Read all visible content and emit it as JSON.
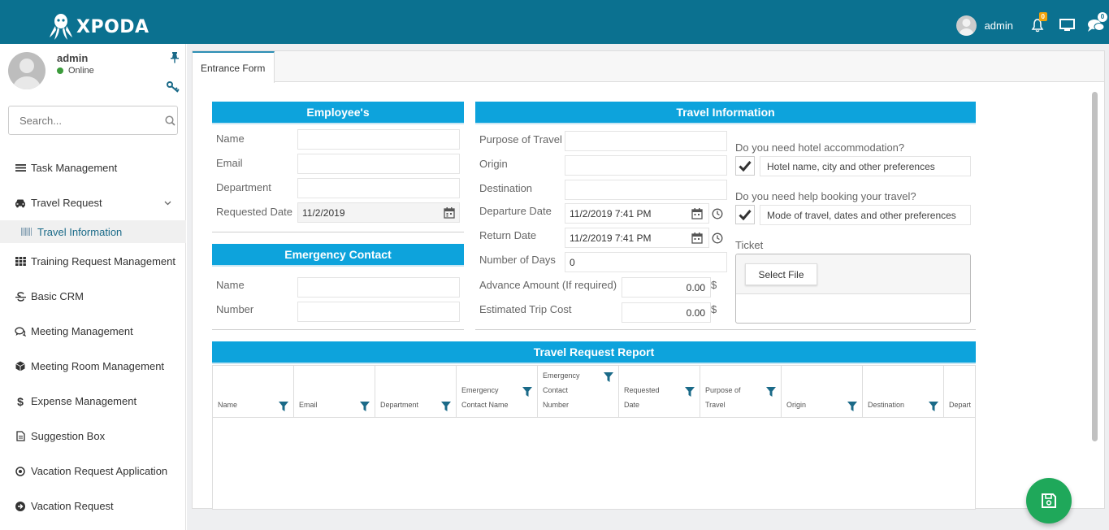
{
  "header": {
    "brand": "XPODA",
    "user": "admin",
    "notification_count": "0",
    "chat_count": "0"
  },
  "sidebar": {
    "profile_name": "admin",
    "profile_status": "Online",
    "search_placeholder": "Search...",
    "items": [
      {
        "label": "Task Management",
        "icon": "list-icon"
      },
      {
        "label": "Travel Request",
        "icon": "car-icon"
      },
      {
        "label": "Travel Information",
        "icon": "barcode-icon"
      },
      {
        "label": "Training Request Management",
        "icon": "grid-icon"
      },
      {
        "label": "Basic CRM",
        "icon": "strikethrough-icon"
      },
      {
        "label": "Meeting Management",
        "icon": "chat-icon"
      },
      {
        "label": "Meeting Room Management",
        "icon": "cube-icon"
      },
      {
        "label": "Expense Management",
        "icon": "dollar-icon"
      },
      {
        "label": "Suggestion Box",
        "icon": "document-icon"
      },
      {
        "label": "Vacation Request Application",
        "icon": "target-icon"
      },
      {
        "label": "Vacation Request",
        "icon": "arrow-circle-icon"
      }
    ]
  },
  "tabs": {
    "active": "Entrance Form"
  },
  "employee": {
    "title": "Employee's",
    "name_label": "Name",
    "email_label": "Email",
    "department_label": "Department",
    "requested_date_label": "Requested Date",
    "requested_date_value": "11/2/2019"
  },
  "emergency": {
    "title": "Emergency Contact",
    "name_label": "Name",
    "number_label": "Number"
  },
  "travel": {
    "title": "Travel Information",
    "purpose_label": "Purpose of Travel",
    "origin_label": "Origin",
    "destination_label": "Destination",
    "departure_label": "Departure Date",
    "departure_value": "11/2/2019 7:41 PM",
    "return_label": "Return Date",
    "return_value": "11/2/2019 7:41 PM",
    "days_label": "Number of Days",
    "days_value": "0",
    "advance_label": "Advance Amount (If required)",
    "advance_value": "0.00",
    "cost_label": "Estimated Trip Cost",
    "cost_value": "0.00",
    "currency": "$",
    "hotel_question": "Do you need hotel accommodation?",
    "hotel_placeholder": "Hotel name, city and other preferences",
    "booking_question": "Do you need help booking your travel?",
    "booking_placeholder": "Mode of travel, dates and other preferences",
    "ticket_label": "Ticket",
    "select_file": "Select File"
  },
  "report": {
    "title": "Travel Request Report",
    "columns": [
      "Name",
      "Email",
      "Department",
      "Emergency Contact Name",
      "Emergency Contact Number",
      "Requested Date",
      "Purpose of Travel",
      "Origin",
      "Destination",
      "Depart"
    ]
  },
  "colors": {
    "header": "#0b7190",
    "section": "#0da3dc",
    "save": "#1fa85a"
  }
}
